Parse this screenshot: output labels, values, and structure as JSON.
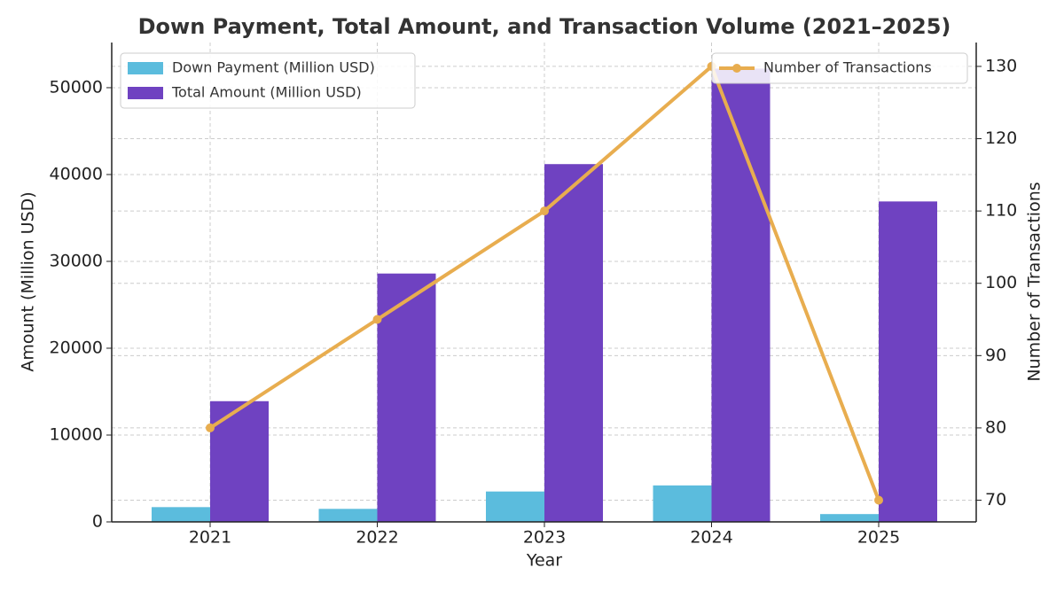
{
  "chart_data": {
    "type": "bar",
    "title": "Down Payment, Total Amount, and Transaction Volume (2021–2025)",
    "x_label": "Year",
    "y_label": "Amount (Million USD)",
    "y2_label": "Number of Transactions",
    "categories": [
      "2021",
      "2022",
      "2023",
      "2024",
      "2025"
    ],
    "series": [
      {
        "name": "Down Payment (Million USD)",
        "color": "#5bbcdd",
        "values": [
          1700,
          1500,
          3500,
          4200,
          900
        ]
      },
      {
        "name": "Total Amount (Million USD)",
        "color": "#6f42c1",
        "values": [
          13900,
          28600,
          41200,
          52200,
          36900
        ]
      },
      {
        "name": "Number of Transactions",
        "color": "#e8ad4f",
        "type": "line",
        "axis": "y2",
        "values": [
          80,
          95,
          110,
          130,
          70
        ]
      }
    ],
    "ylim": [
      0,
      55200
    ],
    "yticks": [
      0,
      10000,
      20000,
      30000,
      40000,
      50000
    ],
    "y2lim": [
      67,
      133.3
    ],
    "y2ticks": [
      70,
      80,
      90,
      100,
      110,
      120,
      130
    ],
    "grid": true,
    "legend": "upper left",
    "legend2": "upper right"
  }
}
